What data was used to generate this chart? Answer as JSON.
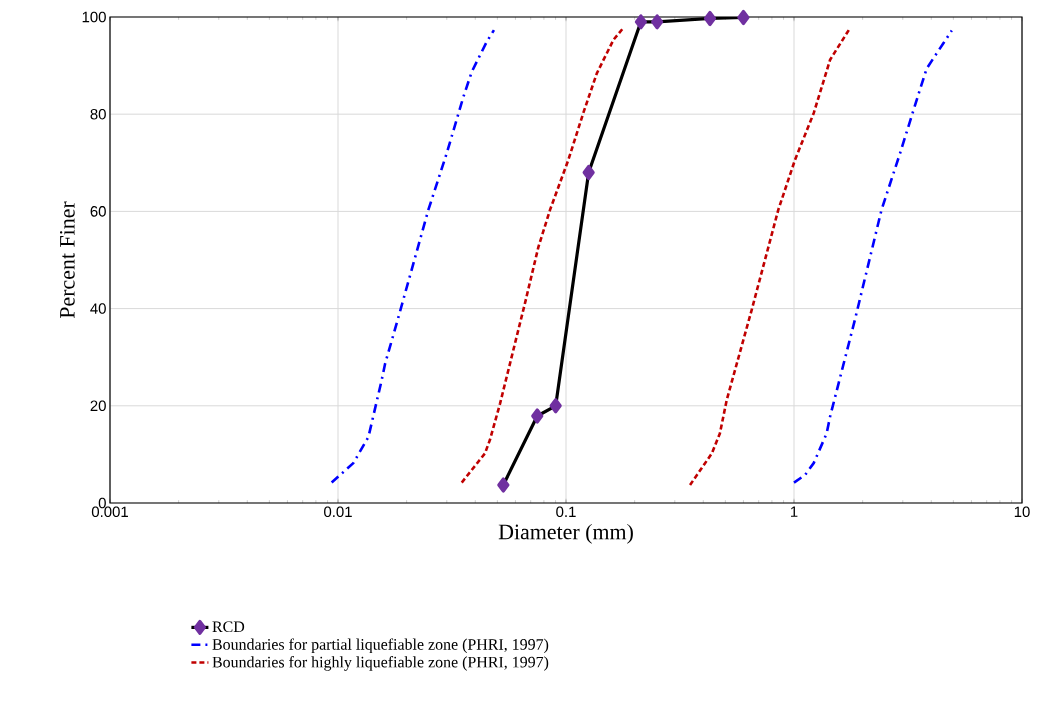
{
  "chart_data": {
    "type": "line",
    "xlabel": "Diameter (mm)",
    "ylabel": "Percent Finer",
    "log": "x",
    "grid": true,
    "legend": "bottom",
    "xlim": [
      0.001,
      10
    ],
    "ylim": [
      0,
      100
    ],
    "xticks": [
      0.001,
      0.01,
      0.1,
      1,
      10
    ],
    "yticks": [
      0,
      20,
      40,
      60,
      80,
      100
    ],
    "series": [
      {
        "name": "RCD",
        "color": "#000000",
        "marker": "diamond",
        "line_style": "solid",
        "x": [
          0.0531,
          0.0748,
          0.0901,
          0.1257,
          0.213,
          0.251,
          0.428,
          0.6
        ],
        "values": [
          3.7,
          17.9,
          20,
          68,
          99,
          99,
          99.7,
          99.9
        ]
      },
      {
        "name": "Boundaries for partial liquefiable zone (PHRI, 1997)",
        "color": "#0000ff",
        "marker": "none",
        "line_style": "dashdot",
        "x": [
          0.00938,
          0.01167,
          0.0136,
          0.01555,
          0.0161,
          0.0181,
          0.0249,
          0.03,
          0.0355,
          0.0386,
          0.0449,
          0.0483
        ],
        "values": [
          4.2,
          8.2,
          13.6,
          25.3,
          28.7,
          37,
          60.3,
          72,
          83.6,
          88.7,
          94.9,
          97.3
        ]
      },
      {
        "name": "Boundaries for highly liquefiable zone (PHRI, 1997)",
        "color": "#c00000",
        "marker": "none",
        "line_style": "dashed",
        "x": [
          0.0349,
          0.0441,
          0.0464,
          0.0514,
          0.066,
          0.0757,
          0.0851,
          0.1024,
          0.119,
          0.1365,
          0.1615,
          0.178
        ],
        "values": [
          4.2,
          10.2,
          13,
          20.5,
          41,
          52.7,
          60.3,
          70.6,
          80.2,
          88.4,
          95.3,
          97.7
        ]
      },
      {
        "color": "#0000ff",
        "marker": "none",
        "line_style": "dashdot",
        "x": [
          1.0,
          1.12,
          1.22,
          1.39,
          1.44,
          1.85,
          2.42,
          2.92,
          3.51,
          3.82,
          4.52,
          4.92
        ],
        "values": [
          4.2,
          5.8,
          8.2,
          14.3,
          17.8,
          37.7,
          60.3,
          72,
          84,
          89.4,
          94.6,
          97.2
        ]
      },
      {
        "color": "#c00000",
        "marker": "none",
        "line_style": "dashed",
        "x": [
          0.35,
          0.436,
          0.473,
          0.507,
          0.652,
          0.853,
          1.01,
          1.22,
          1.44,
          1.76
        ],
        "values": [
          3.7,
          10.2,
          14.3,
          21.2,
          39.7,
          60.3,
          70.6,
          80.2,
          91.2,
          97.7
        ]
      }
    ]
  }
}
